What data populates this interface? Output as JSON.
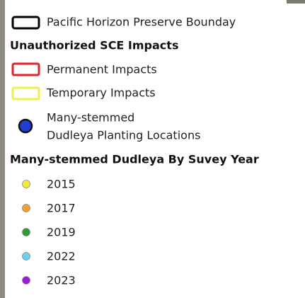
{
  "legend": {
    "boundary": {
      "label": "Pacific Horizon Preserve Bounday"
    },
    "impacts": {
      "title": "Unauthorized SCE Impacts",
      "items": [
        {
          "label": "Permanent Impacts"
        },
        {
          "label": "Temporary Impacts"
        }
      ]
    },
    "planting": {
      "label_lines": [
        "Many-stemmed",
        "Dudleya Planting Locations"
      ]
    },
    "survey": {
      "title": "Many-stemmed Dudleya By Suvey Year",
      "items": [
        {
          "label": "2015"
        },
        {
          "label": "2017"
        },
        {
          "label": "2019"
        },
        {
          "label": "2022"
        },
        {
          "label": "2023"
        }
      ]
    }
  }
}
